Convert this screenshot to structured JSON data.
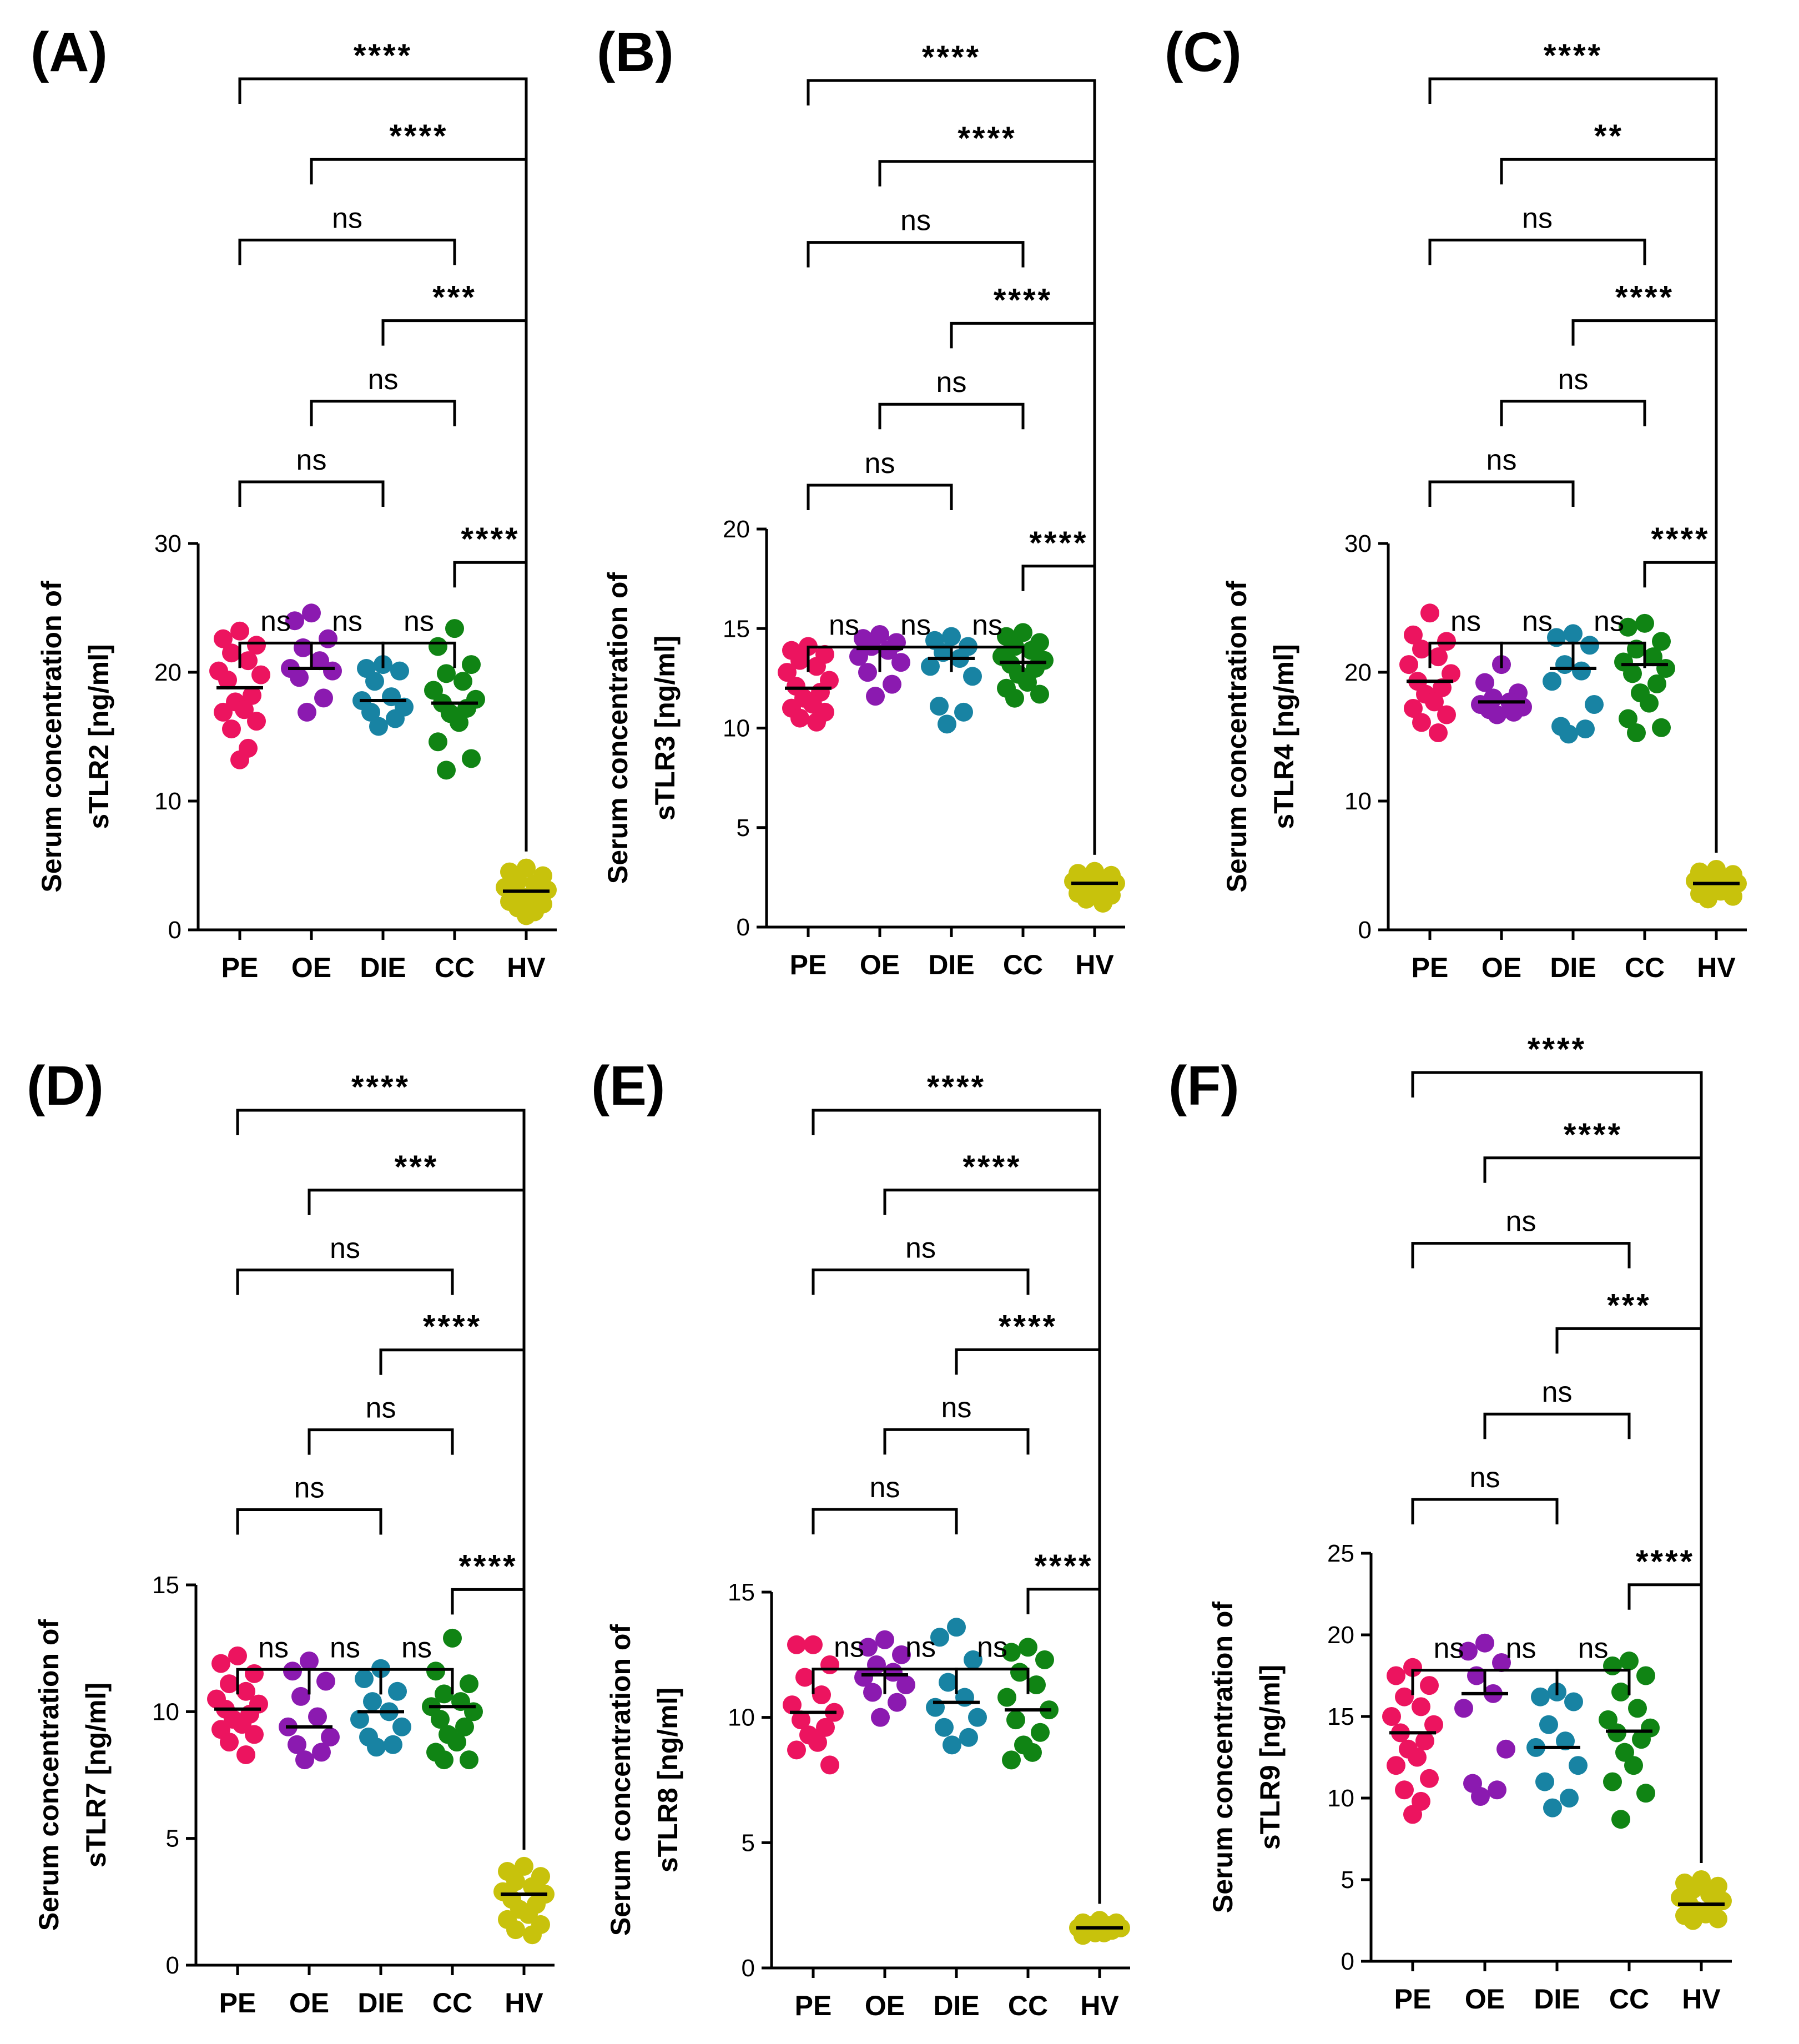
{
  "colors": {
    "PE": "#ec145f",
    "OE": "#8b1ab0",
    "DIE": "#1883a3",
    "CC": "#108414",
    "HV": "#c8c20c"
  },
  "chart_data": [
    {
      "type": "scatter",
      "panel": "(A)",
      "ylabel": [
        "Serum concentration of",
        "sTLR2 [ng/ml]"
      ],
      "categories": [
        "PE",
        "OE",
        "DIE",
        "CC",
        "HV"
      ],
      "ylim": [
        0,
        30
      ],
      "yticks": [
        0,
        10,
        20,
        30
      ],
      "medians": [
        18.8,
        20.3,
        17.8,
        17.6,
        3.0
      ],
      "series": [
        {
          "name": "PE",
          "values": [
            23.2,
            22.6,
            22.1,
            21.5,
            20.9,
            20.1,
            19.8,
            19.4,
            18.2,
            17.7,
            17.1,
            16.9,
            16.2,
            15.6,
            14.1,
            13.2
          ]
        },
        {
          "name": "OE",
          "values": [
            24.6,
            24.0,
            22.6,
            21.9,
            20.9,
            20.3,
            20.1,
            19.6,
            18.0,
            16.9
          ]
        },
        {
          "name": "DIE",
          "values": [
            20.6,
            20.3,
            20.1,
            19.3,
            18.1,
            17.8,
            17.3,
            16.9,
            16.4,
            15.8
          ]
        },
        {
          "name": "CC",
          "values": [
            23.4,
            22.0,
            20.6,
            19.9,
            19.3,
            18.6,
            17.9,
            17.6,
            17.2,
            16.8,
            16.1,
            14.6,
            13.3,
            12.4
          ]
        },
        {
          "name": "HV",
          "values": [
            4.8,
            4.5,
            4.2,
            3.8,
            3.6,
            3.3,
            3.1,
            2.9,
            2.8,
            2.6,
            2.4,
            2.2,
            2.0,
            1.7,
            1.4,
            1.1
          ]
        }
      ],
      "comparisons": [
        {
          "from": "PE",
          "to": "HV",
          "label": "****"
        },
        {
          "from": "OE",
          "to": "HV",
          "label": "****"
        },
        {
          "from": "PE",
          "to": "CC",
          "label": "ns"
        },
        {
          "from": "DIE",
          "to": "HV",
          "label": "***"
        },
        {
          "from": "OE",
          "to": "CC",
          "label": "ns"
        },
        {
          "from": "PE",
          "to": "DIE",
          "label": "ns"
        },
        {
          "from": "CC",
          "to": "HV",
          "label": "****"
        },
        {
          "from": "PE",
          "to": "OE",
          "label": "ns"
        },
        {
          "from": "OE",
          "to": "DIE",
          "label": "ns"
        },
        {
          "from": "DIE",
          "to": "CC",
          "label": "ns"
        }
      ]
    },
    {
      "type": "scatter",
      "panel": "(B)",
      "ylabel": [
        "Serum concentration of",
        "sTLR3 [ng/ml]"
      ],
      "categories": [
        "PE",
        "OE",
        "DIE",
        "CC",
        "HV"
      ],
      "ylim": [
        0,
        20
      ],
      "yticks": [
        0,
        5,
        10,
        15,
        20
      ],
      "medians": [
        12.0,
        14.0,
        13.5,
        13.3,
        2.2
      ],
      "series": [
        {
          "name": "PE",
          "values": [
            14.1,
            13.9,
            13.7,
            13.4,
            13.1,
            12.8,
            12.4,
            12.1,
            11.8,
            11.5,
            11.2,
            11.0,
            10.8,
            10.5,
            10.3
          ]
        },
        {
          "name": "OE",
          "values": [
            14.7,
            14.5,
            14.3,
            14.1,
            13.9,
            13.6,
            13.3,
            12.8,
            12.2,
            11.6
          ]
        },
        {
          "name": "DIE",
          "values": [
            14.6,
            14.4,
            14.1,
            13.8,
            13.5,
            13.1,
            12.6,
            11.1,
            10.8,
            10.2
          ]
        },
        {
          "name": "CC",
          "values": [
            14.8,
            14.6,
            14.3,
            14.1,
            13.9,
            13.6,
            13.4,
            13.2,
            13.0,
            12.7,
            12.3,
            12.0,
            11.7,
            11.5
          ]
        },
        {
          "name": "HV",
          "values": [
            2.8,
            2.7,
            2.6,
            2.5,
            2.4,
            2.3,
            2.2,
            2.1,
            2.0,
            1.9,
            1.8,
            1.7,
            1.6,
            1.4,
            1.2
          ]
        }
      ],
      "comparisons": [
        {
          "from": "PE",
          "to": "HV",
          "label": "****"
        },
        {
          "from": "OE",
          "to": "HV",
          "label": "****"
        },
        {
          "from": "PE",
          "to": "CC",
          "label": "ns"
        },
        {
          "from": "DIE",
          "to": "HV",
          "label": "****"
        },
        {
          "from": "OE",
          "to": "CC",
          "label": "ns"
        },
        {
          "from": "PE",
          "to": "DIE",
          "label": "ns"
        },
        {
          "from": "CC",
          "to": "HV",
          "label": "****"
        },
        {
          "from": "PE",
          "to": "OE",
          "label": "ns"
        },
        {
          "from": "OE",
          "to": "DIE",
          "label": "ns"
        },
        {
          "from": "DIE",
          "to": "CC",
          "label": "ns"
        }
      ]
    },
    {
      "type": "scatter",
      "panel": "(C)",
      "ylabel": [
        "Serum concentration of",
        "sTLR4 [ng/ml]"
      ],
      "categories": [
        "PE",
        "OE",
        "DIE",
        "CC",
        "HV"
      ],
      "ylim": [
        0,
        30
      ],
      "yticks": [
        0,
        10,
        20,
        30
      ],
      "medians": [
        19.3,
        17.7,
        20.3,
        20.6,
        3.6
      ],
      "series": [
        {
          "name": "PE",
          "values": [
            24.6,
            22.9,
            22.4,
            21.8,
            21.2,
            20.6,
            19.9,
            19.3,
            18.8,
            18.3,
            17.7,
            17.2,
            16.7,
            16.1,
            15.3
          ]
        },
        {
          "name": "OE",
          "values": [
            20.6,
            19.2,
            18.4,
            18.0,
            17.7,
            17.5,
            17.3,
            17.1,
            16.9,
            16.7
          ]
        },
        {
          "name": "DIE",
          "values": [
            23.0,
            22.7,
            22.1,
            20.6,
            20.1,
            19.3,
            17.5,
            15.8,
            15.6,
            15.2
          ]
        },
        {
          "name": "CC",
          "values": [
            23.8,
            23.5,
            22.4,
            21.8,
            21.2,
            20.8,
            20.3,
            19.9,
            19.1,
            18.4,
            17.6,
            16.4,
            15.7,
            15.3
          ]
        },
        {
          "name": "HV",
          "values": [
            4.7,
            4.5,
            4.3,
            4.1,
            3.9,
            3.8,
            3.6,
            3.5,
            3.4,
            3.2,
            3.0,
            2.8,
            2.6,
            2.4
          ]
        }
      ],
      "comparisons": [
        {
          "from": "PE",
          "to": "HV",
          "label": "****"
        },
        {
          "from": "OE",
          "to": "HV",
          "label": "**"
        },
        {
          "from": "PE",
          "to": "CC",
          "label": "ns"
        },
        {
          "from": "DIE",
          "to": "HV",
          "label": "****"
        },
        {
          "from": "OE",
          "to": "CC",
          "label": "ns"
        },
        {
          "from": "PE",
          "to": "DIE",
          "label": "ns"
        },
        {
          "from": "CC",
          "to": "HV",
          "label": "****"
        },
        {
          "from": "PE",
          "to": "OE",
          "label": "ns"
        },
        {
          "from": "OE",
          "to": "DIE",
          "label": "ns"
        },
        {
          "from": "DIE",
          "to": "CC",
          "label": "ns"
        }
      ]
    },
    {
      "type": "scatter",
      "panel": "(D)",
      "ylabel": [
        "Serum concentration of",
        "sTLR7 [ng/ml]"
      ],
      "categories": [
        "PE",
        "OE",
        "DIE",
        "CC",
        "HV"
      ],
      "ylim": [
        0,
        15
      ],
      "yticks": [
        0,
        5,
        10,
        15
      ],
      "medians": [
        10.1,
        9.4,
        10.0,
        10.2,
        2.8
      ],
      "series": [
        {
          "name": "PE",
          "values": [
            12.2,
            11.9,
            11.5,
            11.1,
            10.8,
            10.5,
            10.3,
            10.1,
            9.9,
            9.7,
            9.5,
            9.3,
            9.1,
            8.8,
            8.3
          ]
        },
        {
          "name": "OE",
          "values": [
            12.0,
            11.6,
            11.2,
            10.6,
            9.8,
            9.4,
            9.0,
            8.7,
            8.4,
            8.1
          ]
        },
        {
          "name": "DIE",
          "values": [
            11.7,
            11.3,
            10.8,
            10.4,
            10.0,
            9.7,
            9.4,
            9.0,
            8.7,
            8.6
          ]
        },
        {
          "name": "CC",
          "values": [
            12.9,
            11.6,
            11.1,
            10.7,
            10.4,
            10.2,
            10.0,
            9.7,
            9.4,
            9.1,
            8.8,
            8.4,
            8.1,
            8.1
          ]
        },
        {
          "name": "HV",
          "values": [
            3.9,
            3.7,
            3.5,
            3.3,
            3.1,
            2.9,
            2.8,
            2.6,
            2.4,
            2.2,
            2.0,
            1.8,
            1.6,
            1.4,
            1.2
          ]
        }
      ],
      "comparisons": [
        {
          "from": "PE",
          "to": "HV",
          "label": "****"
        },
        {
          "from": "OE",
          "to": "HV",
          "label": "***"
        },
        {
          "from": "PE",
          "to": "CC",
          "label": "ns"
        },
        {
          "from": "DIE",
          "to": "HV",
          "label": "****"
        },
        {
          "from": "OE",
          "to": "CC",
          "label": "ns"
        },
        {
          "from": "PE",
          "to": "DIE",
          "label": "ns"
        },
        {
          "from": "CC",
          "to": "HV",
          "label": "****"
        },
        {
          "from": "PE",
          "to": "OE",
          "label": "ns"
        },
        {
          "from": "OE",
          "to": "DIE",
          "label": "ns"
        },
        {
          "from": "DIE",
          "to": "CC",
          "label": "ns"
        }
      ]
    },
    {
      "type": "scatter",
      "panel": "(E)",
      "ylabel": [
        "Serum concentration of",
        "sTLR8 [ng/ml]"
      ],
      "categories": [
        "PE",
        "OE",
        "DIE",
        "CC",
        "HV"
      ],
      "ylim": [
        0,
        15
      ],
      "yticks": [
        0,
        5,
        10,
        15
      ],
      "medians": [
        10.2,
        11.7,
        10.6,
        10.3,
        1.6
      ],
      "series": [
        {
          "name": "PE",
          "values": [
            12.9,
            12.9,
            12.1,
            11.6,
            10.9,
            10.5,
            10.2,
            9.9,
            9.6,
            9.3,
            9.0,
            8.7,
            8.1
          ]
        },
        {
          "name": "OE",
          "values": [
            13.1,
            12.8,
            12.5,
            12.1,
            11.8,
            11.6,
            11.3,
            11.0,
            10.6,
            10.0
          ]
        },
        {
          "name": "DIE",
          "values": [
            13.6,
            13.2,
            12.3,
            11.4,
            10.8,
            10.4,
            10.0,
            9.6,
            9.2,
            8.9
          ]
        },
        {
          "name": "CC",
          "values": [
            12.8,
            12.6,
            12.3,
            11.8,
            11.3,
            10.8,
            10.3,
            9.9,
            9.4,
            8.9,
            8.6,
            8.3
          ]
        },
        {
          "name": "HV",
          "values": [
            1.9,
            1.8,
            1.8,
            1.7,
            1.7,
            1.6,
            1.6,
            1.5,
            1.5,
            1.4,
            1.4,
            1.3
          ]
        }
      ],
      "comparisons": [
        {
          "from": "PE",
          "to": "HV",
          "label": "****"
        },
        {
          "from": "OE",
          "to": "HV",
          "label": "****"
        },
        {
          "from": "PE",
          "to": "CC",
          "label": "ns"
        },
        {
          "from": "DIE",
          "to": "HV",
          "label": "****"
        },
        {
          "from": "OE",
          "to": "CC",
          "label": "ns"
        },
        {
          "from": "PE",
          "to": "DIE",
          "label": "ns"
        },
        {
          "from": "CC",
          "to": "HV",
          "label": "****"
        },
        {
          "from": "PE",
          "to": "OE",
          "label": "ns"
        },
        {
          "from": "OE",
          "to": "DIE",
          "label": "ns"
        },
        {
          "from": "DIE",
          "to": "CC",
          "label": "ns"
        }
      ]
    },
    {
      "type": "scatter",
      "panel": "(F)",
      "ylabel": [
        "Serum concentration of",
        "sTLR9 [ng/ml]"
      ],
      "categories": [
        "PE",
        "OE",
        "DIE",
        "CC",
        "HV"
      ],
      "ylim": [
        0,
        25
      ],
      "yticks": [
        0,
        5,
        10,
        15,
        20,
        25
      ],
      "medians": [
        14.0,
        16.4,
        13.1,
        14.1,
        3.5
      ],
      "series": [
        {
          "name": "PE",
          "values": [
            18.0,
            17.5,
            16.9,
            16.2,
            15.6,
            15.0,
            14.5,
            14.0,
            13.5,
            13.0,
            12.5,
            12.0,
            11.2,
            10.5,
            9.8,
            9.0
          ]
        },
        {
          "name": "OE",
          "values": [
            19.5,
            19.0,
            18.3,
            17.5,
            16.4,
            15.5,
            13.0,
            10.9,
            10.5,
            10.1
          ]
        },
        {
          "name": "DIE",
          "values": [
            16.5,
            16.2,
            15.9,
            14.5,
            13.5,
            13.1,
            12.0,
            11.0,
            10.0,
            9.4
          ]
        },
        {
          "name": "CC",
          "values": [
            18.4,
            18.1,
            17.5,
            16.5,
            15.5,
            14.8,
            14.3,
            14.0,
            13.6,
            12.8,
            12.0,
            11.0,
            10.3,
            8.7
          ]
        },
        {
          "name": "HV",
          "values": [
            5.0,
            4.8,
            4.6,
            4.4,
            4.1,
            3.9,
            3.7,
            3.5,
            3.3,
            3.1,
            2.9,
            2.8,
            2.6,
            2.5
          ]
        }
      ],
      "comparisons": [
        {
          "from": "PE",
          "to": "HV",
          "label": "****"
        },
        {
          "from": "OE",
          "to": "HV",
          "label": "****"
        },
        {
          "from": "PE",
          "to": "CC",
          "label": "ns"
        },
        {
          "from": "DIE",
          "to": "HV",
          "label": "***"
        },
        {
          "from": "OE",
          "to": "CC",
          "label": "ns"
        },
        {
          "from": "PE",
          "to": "DIE",
          "label": "ns"
        },
        {
          "from": "CC",
          "to": "HV",
          "label": "****"
        },
        {
          "from": "PE",
          "to": "OE",
          "label": "ns"
        },
        {
          "from": "OE",
          "to": "DIE",
          "label": "ns"
        },
        {
          "from": "DIE",
          "to": "CC",
          "label": "ns"
        }
      ]
    }
  ]
}
